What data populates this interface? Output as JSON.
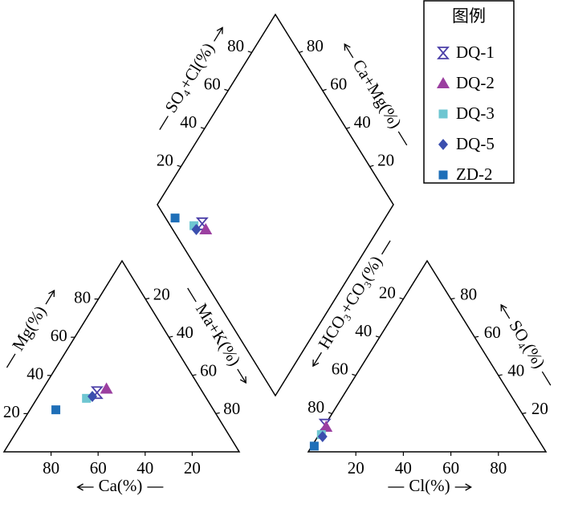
{
  "chart_data": {
    "type": "piper",
    "legend_title": "图例",
    "legend": "upper right",
    "axes": [
      {
        "title": "Ca(%)",
        "ticks": [
          80,
          60,
          40,
          20
        ]
      },
      {
        "title": "Mg(%)",
        "ticks": [
          20,
          40,
          60,
          80
        ]
      },
      {
        "title": "Ma+K(%)",
        "ticks": [
          20,
          40,
          60,
          80
        ]
      },
      {
        "title": "SO₄+Cl(%)",
        "ticks": [
          20,
          40,
          60,
          80
        ]
      },
      {
        "title": "Ca+Mg(%)",
        "ticks": [
          80,
          60,
          40,
          20
        ]
      },
      {
        "title": "HCO₃+CO₃(%)",
        "ticks": [
          20,
          40,
          60,
          80
        ]
      },
      {
        "title": "SO₄(%)",
        "ticks": [
          80,
          60,
          40,
          20
        ]
      },
      {
        "title": "Cl(%)",
        "ticks": [
          20,
          40,
          60,
          80
        ]
      }
    ],
    "series": [
      {
        "name": "DQ-1",
        "color": "#4b3fa8",
        "marker": "hourglass",
        "ca": 45,
        "mg": 31,
        "so4": 14,
        "cl": 0
      },
      {
        "name": "DQ-2",
        "color": "#9b3fa0",
        "marker": "triangle",
        "ca": 40,
        "mg": 33,
        "so4": 13,
        "cl": 1
      },
      {
        "name": "DQ-3",
        "color": "#6ec6d1",
        "marker": "square",
        "ca": 51,
        "mg": 28,
        "so4": 9,
        "cl": 1
      },
      {
        "name": "DQ-5",
        "color": "#3b4fae",
        "marker": "diamond",
        "ca": 48,
        "mg": 29,
        "so4": 8,
        "cl": 2
      },
      {
        "name": "ZD-2",
        "color": "#1f6fb8",
        "marker": "square",
        "ca": 67,
        "mg": 22,
        "so4": 3,
        "cl": 1
      }
    ]
  }
}
